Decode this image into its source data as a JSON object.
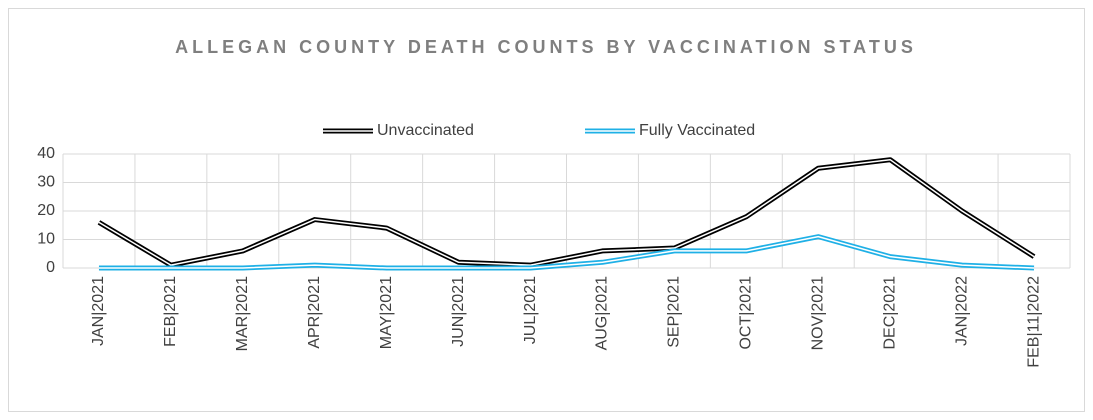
{
  "chart_data": {
    "type": "line",
    "title": "ALLEGAN COUNTY DEATH COUNTS BY VACCINATION STATUS",
    "categories": [
      "JAN|2021",
      "FEB|2021",
      "MAR|2021",
      "APR|2021",
      "MAY|2021",
      "JUN|2021",
      "JUL|2021",
      "AUG|2021",
      "SEP|2021",
      "OCT|2021",
      "NOV|2021",
      "DEC|2021",
      "JAN|2022",
      "FEB|11|2022"
    ],
    "series": [
      {
        "name": "Unvaccinated",
        "color": "#000000",
        "values": [
          16,
          1,
          6,
          17,
          14,
          2,
          1,
          6,
          7,
          18,
          35,
          38,
          20,
          4
        ]
      },
      {
        "name": "Fully Vaccinated",
        "color": "#1fb0e6",
        "values": [
          0,
          0,
          0,
          1,
          0,
          0,
          0,
          2,
          6,
          6,
          11,
          4,
          1,
          0
        ]
      }
    ],
    "ylim": [
      0,
      40
    ],
    "yticks": [
      0,
      10,
      20,
      30,
      40
    ],
    "grid": true,
    "legend": "top"
  }
}
